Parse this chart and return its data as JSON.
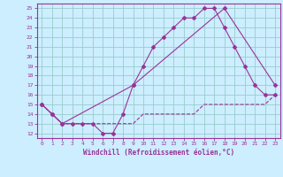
{
  "xlabel": "Windchill (Refroidissement éolien,°C)",
  "bg_color": "#cceeff",
  "line_color": "#993399",
  "grid_color": "#99cccc",
  "axis_color": "#993399",
  "tick_color": "#993399",
  "xlim": [
    -0.5,
    23.5
  ],
  "ylim": [
    11.5,
    25.5
  ],
  "yticks": [
    12,
    13,
    14,
    15,
    16,
    17,
    18,
    19,
    20,
    21,
    22,
    23,
    24,
    25
  ],
  "xticks": [
    0,
    1,
    2,
    3,
    4,
    5,
    6,
    7,
    8,
    9,
    10,
    11,
    12,
    13,
    14,
    15,
    16,
    17,
    18,
    19,
    20,
    21,
    22,
    23
  ],
  "line1_x": [
    0,
    1,
    2,
    3,
    4,
    5,
    6,
    7,
    8,
    9,
    10,
    11,
    12,
    13,
    14,
    15,
    16,
    17,
    18,
    19,
    20,
    21,
    22,
    23
  ],
  "line1_y": [
    15,
    14,
    13,
    13,
    13,
    13,
    12,
    12,
    14,
    17,
    19,
    21,
    22,
    23,
    24,
    24,
    25,
    25,
    23,
    21,
    19,
    17,
    16,
    16
  ],
  "line2_x": [
    0,
    1,
    2,
    3,
    4,
    5,
    6,
    7,
    8,
    9,
    10,
    11,
    12,
    13,
    14,
    15,
    16,
    17,
    18,
    19,
    20,
    21,
    22,
    23
  ],
  "line2_y": [
    15,
    14,
    13,
    13,
    13,
    13,
    13,
    13,
    13,
    13,
    14,
    14,
    14,
    14,
    14,
    14,
    15,
    15,
    15,
    15,
    15,
    15,
    15,
    16
  ],
  "line3_x": [
    0,
    1,
    2,
    9,
    18,
    23
  ],
  "line3_y": [
    15,
    14,
    13,
    17,
    25,
    17
  ]
}
